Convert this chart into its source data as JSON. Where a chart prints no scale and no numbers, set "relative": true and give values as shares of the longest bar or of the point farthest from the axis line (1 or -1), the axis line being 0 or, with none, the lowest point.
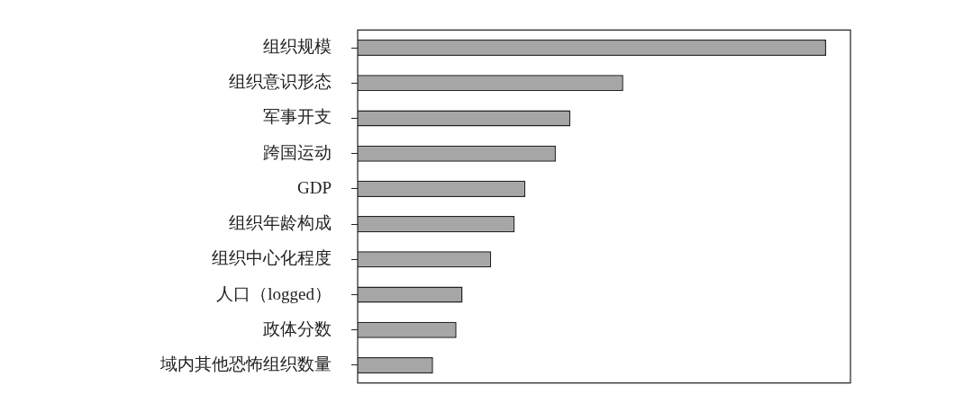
{
  "chart_data": {
    "type": "bar",
    "orientation": "horizontal",
    "relative": true,
    "categories": [
      "组织规模",
      "组织意识形态",
      "军事开支",
      "跨国运动",
      "GDP",
      "组织年龄构成",
      "组织中心化程度",
      "人口（logged）",
      "政体分数",
      "域内其他恐怖组织数量"
    ],
    "values": [
      1,
      0.567,
      0.454,
      0.423,
      0.358,
      0.335,
      0.285,
      0.224,
      0.211,
      0.161
    ],
    "color": "#a6a6a6"
  }
}
